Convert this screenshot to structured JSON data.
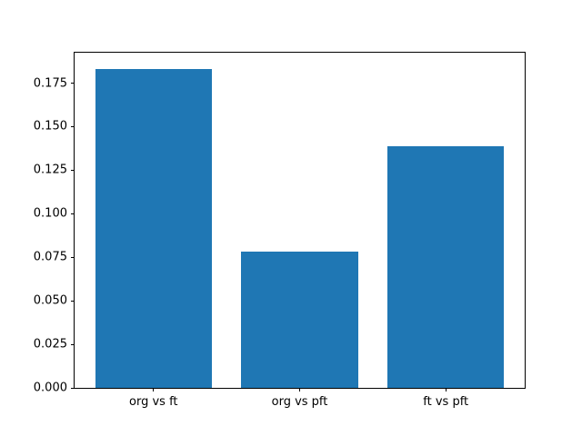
{
  "chart_data": {
    "type": "bar",
    "categories": [
      "org vs ft",
      "org vs pft",
      "ft vs pft"
    ],
    "values": [
      0.183,
      0.078,
      0.139
    ],
    "title": "",
    "xlabel": "",
    "ylabel": "",
    "ylim": [
      0,
      0.1925
    ],
    "yticks": [
      0.0,
      0.025,
      0.05,
      0.075,
      0.1,
      0.125,
      0.15,
      0.175
    ],
    "ytick_decimals": 3,
    "bar_color": "#1f77b4",
    "bar_width_data_units": 0.8,
    "grid": false,
    "legend": null
  }
}
